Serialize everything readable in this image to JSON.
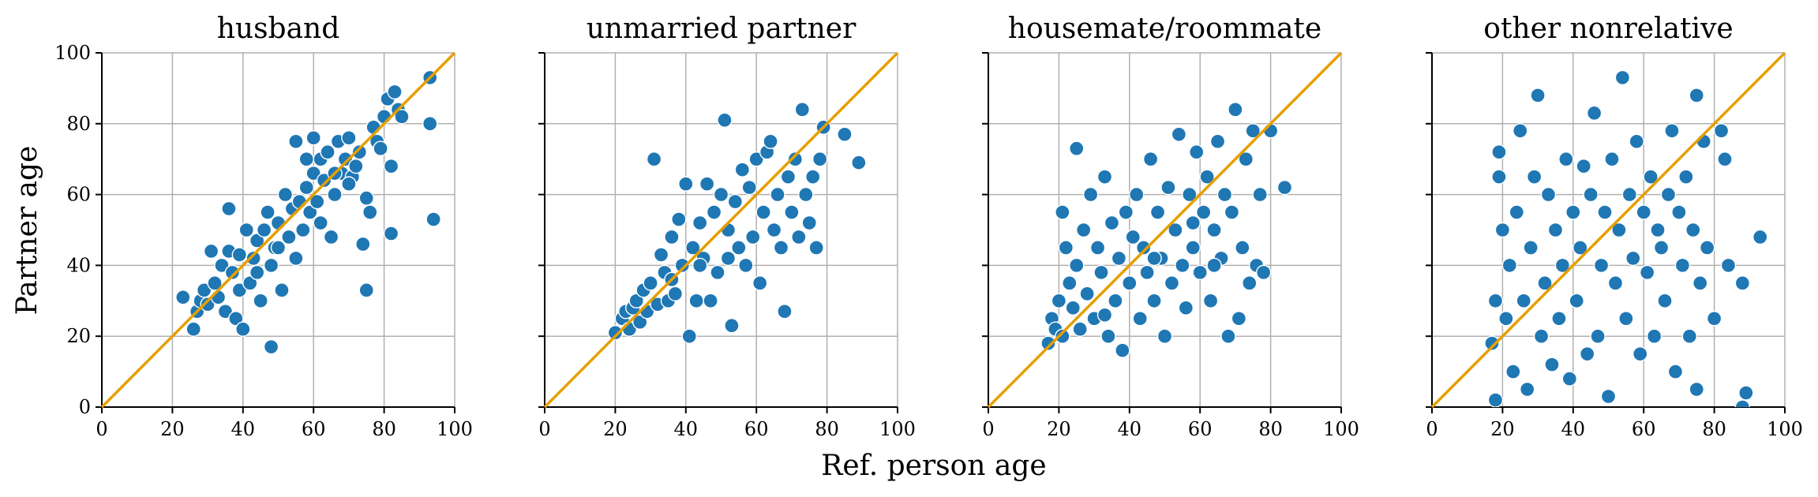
{
  "chart_data": {
    "type": "scatter",
    "xlabel": "Ref. person age",
    "ylabel": "Partner age",
    "xlim": [
      0,
      100
    ],
    "ylim": [
      0,
      100
    ],
    "xticks": [
      0,
      20,
      40,
      60,
      80,
      100
    ],
    "yticks": [
      0,
      20,
      40,
      60,
      80,
      100
    ],
    "grid": true,
    "point_color": "#1f77b4",
    "reference_line": {
      "from": [
        0,
        0
      ],
      "to": [
        100,
        100
      ],
      "color": "#e69f00"
    },
    "panels": [
      {
        "title": "husband",
        "points": [
          [
            23,
            31
          ],
          [
            26,
            22
          ],
          [
            27,
            27
          ],
          [
            28,
            30
          ],
          [
            29,
            33
          ],
          [
            30,
            29
          ],
          [
            31,
            44
          ],
          [
            32,
            35
          ],
          [
            33,
            31
          ],
          [
            34,
            40
          ],
          [
            35,
            27
          ],
          [
            36,
            56
          ],
          [
            36,
            44
          ],
          [
            37,
            38
          ],
          [
            38,
            25
          ],
          [
            39,
            33
          ],
          [
            39,
            43
          ],
          [
            40,
            22
          ],
          [
            41,
            50
          ],
          [
            42,
            35
          ],
          [
            43,
            42
          ],
          [
            44,
            47
          ],
          [
            45,
            30
          ],
          [
            46,
            50
          ],
          [
            47,
            55
          ],
          [
            48,
            17
          ],
          [
            48,
            40
          ],
          [
            49,
            45
          ],
          [
            50,
            52
          ],
          [
            51,
            33
          ],
          [
            52,
            60
          ],
          [
            53,
            48
          ],
          [
            54,
            56
          ],
          [
            55,
            75
          ],
          [
            55,
            42
          ],
          [
            56,
            58
          ],
          [
            57,
            50
          ],
          [
            58,
            62
          ],
          [
            59,
            55
          ],
          [
            60,
            76
          ],
          [
            60,
            66
          ],
          [
            61,
            58
          ],
          [
            62,
            70
          ],
          [
            63,
            64
          ],
          [
            64,
            72
          ],
          [
            65,
            48
          ],
          [
            66,
            60
          ],
          [
            67,
            75
          ],
          [
            68,
            66
          ],
          [
            69,
            70
          ],
          [
            70,
            76
          ],
          [
            71,
            65
          ],
          [
            72,
            68
          ],
          [
            73,
            72
          ],
          [
            74,
            46
          ],
          [
            75,
            33
          ],
          [
            75,
            59
          ],
          [
            76,
            55
          ],
          [
            77,
            79
          ],
          [
            78,
            75
          ],
          [
            79,
            73
          ],
          [
            80,
            82
          ],
          [
            81,
            87
          ],
          [
            82,
            68
          ],
          [
            82,
            49
          ],
          [
            83,
            89
          ],
          [
            84,
            84
          ],
          [
            85,
            82
          ],
          [
            93,
            93
          ],
          [
            93,
            80
          ],
          [
            94,
            53
          ],
          [
            44,
            38
          ],
          [
            50,
            45
          ],
          [
            58,
            70
          ],
          [
            62,
            52
          ],
          [
            66,
            66
          ],
          [
            70,
            63
          ]
        ]
      },
      {
        "title": "unmarried partner",
        "points": [
          [
            20,
            21
          ],
          [
            22,
            25
          ],
          [
            23,
            27
          ],
          [
            24,
            22
          ],
          [
            25,
            28
          ],
          [
            26,
            30
          ],
          [
            27,
            24
          ],
          [
            28,
            33
          ],
          [
            29,
            27
          ],
          [
            30,
            35
          ],
          [
            31,
            70
          ],
          [
            32,
            29
          ],
          [
            33,
            43
          ],
          [
            34,
            38
          ],
          [
            35,
            30
          ],
          [
            36,
            48
          ],
          [
            37,
            32
          ],
          [
            38,
            53
          ],
          [
            39,
            40
          ],
          [
            40,
            63
          ],
          [
            41,
            20
          ],
          [
            42,
            45
          ],
          [
            43,
            30
          ],
          [
            44,
            52
          ],
          [
            45,
            42
          ],
          [
            46,
            63
          ],
          [
            47,
            30
          ],
          [
            48,
            55
          ],
          [
            49,
            38
          ],
          [
            50,
            60
          ],
          [
            51,
            81
          ],
          [
            52,
            50
          ],
          [
            53,
            23
          ],
          [
            54,
            58
          ],
          [
            55,
            45
          ],
          [
            56,
            67
          ],
          [
            57,
            40
          ],
          [
            58,
            62
          ],
          [
            59,
            48
          ],
          [
            60,
            70
          ],
          [
            61,
            35
          ],
          [
            62,
            55
          ],
          [
            63,
            72
          ],
          [
            64,
            75
          ],
          [
            65,
            50
          ],
          [
            66,
            60
          ],
          [
            67,
            45
          ],
          [
            68,
            27
          ],
          [
            69,
            65
          ],
          [
            70,
            55
          ],
          [
            71,
            70
          ],
          [
            72,
            48
          ],
          [
            73,
            84
          ],
          [
            74,
            60
          ],
          [
            75,
            52
          ],
          [
            76,
            65
          ],
          [
            77,
            45
          ],
          [
            78,
            70
          ],
          [
            79,
            79
          ],
          [
            85,
            77
          ],
          [
            89,
            69
          ],
          [
            36,
            36
          ],
          [
            44,
            40
          ],
          [
            52,
            42
          ]
        ]
      },
      {
        "title": "housemate/roommate",
        "points": [
          [
            17,
            18
          ],
          [
            18,
            25
          ],
          [
            19,
            22
          ],
          [
            20,
            30
          ],
          [
            21,
            55
          ],
          [
            21,
            20
          ],
          [
            22,
            45
          ],
          [
            23,
            35
          ],
          [
            24,
            28
          ],
          [
            25,
            73
          ],
          [
            25,
            40
          ],
          [
            26,
            22
          ],
          [
            27,
            50
          ],
          [
            28,
            32
          ],
          [
            29,
            60
          ],
          [
            30,
            25
          ],
          [
            31,
            45
          ],
          [
            32,
            38
          ],
          [
            33,
            65
          ],
          [
            34,
            20
          ],
          [
            35,
            52
          ],
          [
            36,
            30
          ],
          [
            37,
            42
          ],
          [
            38,
            16
          ],
          [
            39,
            55
          ],
          [
            40,
            35
          ],
          [
            41,
            48
          ],
          [
            42,
            60
          ],
          [
            43,
            25
          ],
          [
            44,
            45
          ],
          [
            45,
            38
          ],
          [
            46,
            70
          ],
          [
            47,
            30
          ],
          [
            48,
            55
          ],
          [
            49,
            42
          ],
          [
            50,
            20
          ],
          [
            51,
            62
          ],
          [
            52,
            35
          ],
          [
            53,
            50
          ],
          [
            54,
            77
          ],
          [
            55,
            40
          ],
          [
            56,
            28
          ],
          [
            57,
            60
          ],
          [
            58,
            45
          ],
          [
            59,
            72
          ],
          [
            60,
            38
          ],
          [
            61,
            55
          ],
          [
            62,
            65
          ],
          [
            63,
            30
          ],
          [
            64,
            50
          ],
          [
            65,
            75
          ],
          [
            66,
            42
          ],
          [
            67,
            60
          ],
          [
            68,
            20
          ],
          [
            69,
            55
          ],
          [
            70,
            84
          ],
          [
            71,
            25
          ],
          [
            72,
            45
          ],
          [
            73,
            70
          ],
          [
            74,
            35
          ],
          [
            75,
            78
          ],
          [
            76,
            40
          ],
          [
            77,
            60
          ],
          [
            78,
            38
          ],
          [
            80,
            78
          ],
          [
            84,
            62
          ],
          [
            33,
            26
          ],
          [
            47,
            42
          ],
          [
            58,
            52
          ],
          [
            64,
            40
          ]
        ]
      },
      {
        "title": "other nonrelative",
        "points": [
          [
            17,
            18
          ],
          [
            18,
            30
          ],
          [
            18,
            2
          ],
          [
            19,
            72
          ],
          [
            19,
            65
          ],
          [
            20,
            50
          ],
          [
            21,
            25
          ],
          [
            22,
            40
          ],
          [
            23,
            10
          ],
          [
            24,
            55
          ],
          [
            25,
            78
          ],
          [
            26,
            30
          ],
          [
            27,
            5
          ],
          [
            28,
            45
          ],
          [
            29,
            65
          ],
          [
            30,
            88
          ],
          [
            31,
            20
          ],
          [
            32,
            35
          ],
          [
            33,
            60
          ],
          [
            34,
            12
          ],
          [
            35,
            50
          ],
          [
            36,
            25
          ],
          [
            37,
            40
          ],
          [
            38,
            70
          ],
          [
            39,
            8
          ],
          [
            40,
            55
          ],
          [
            41,
            30
          ],
          [
            42,
            45
          ],
          [
            43,
            68
          ],
          [
            44,
            15
          ],
          [
            45,
            60
          ],
          [
            46,
            83
          ],
          [
            47,
            20
          ],
          [
            48,
            40
          ],
          [
            49,
            55
          ],
          [
            50,
            3
          ],
          [
            51,
            70
          ],
          [
            52,
            35
          ],
          [
            53,
            50
          ],
          [
            54,
            93
          ],
          [
            55,
            25
          ],
          [
            56,
            60
          ],
          [
            57,
            42
          ],
          [
            58,
            75
          ],
          [
            59,
            15
          ],
          [
            60,
            55
          ],
          [
            61,
            38
          ],
          [
            62,
            65
          ],
          [
            63,
            20
          ],
          [
            64,
            50
          ],
          [
            65,
            45
          ],
          [
            66,
            30
          ],
          [
            67,
            60
          ],
          [
            68,
            78
          ],
          [
            69,
            10
          ],
          [
            70,
            55
          ],
          [
            71,
            40
          ],
          [
            72,
            65
          ],
          [
            73,
            20
          ],
          [
            74,
            50
          ],
          [
            75,
            88
          ],
          [
            75,
            5
          ],
          [
            76,
            35
          ],
          [
            77,
            75
          ],
          [
            78,
            45
          ],
          [
            80,
            25
          ],
          [
            82,
            78
          ],
          [
            83,
            70
          ],
          [
            84,
            40
          ],
          [
            88,
            35
          ],
          [
            89,
            4
          ],
          [
            93,
            48
          ],
          [
            88,
            0
          ]
        ]
      }
    ]
  }
}
